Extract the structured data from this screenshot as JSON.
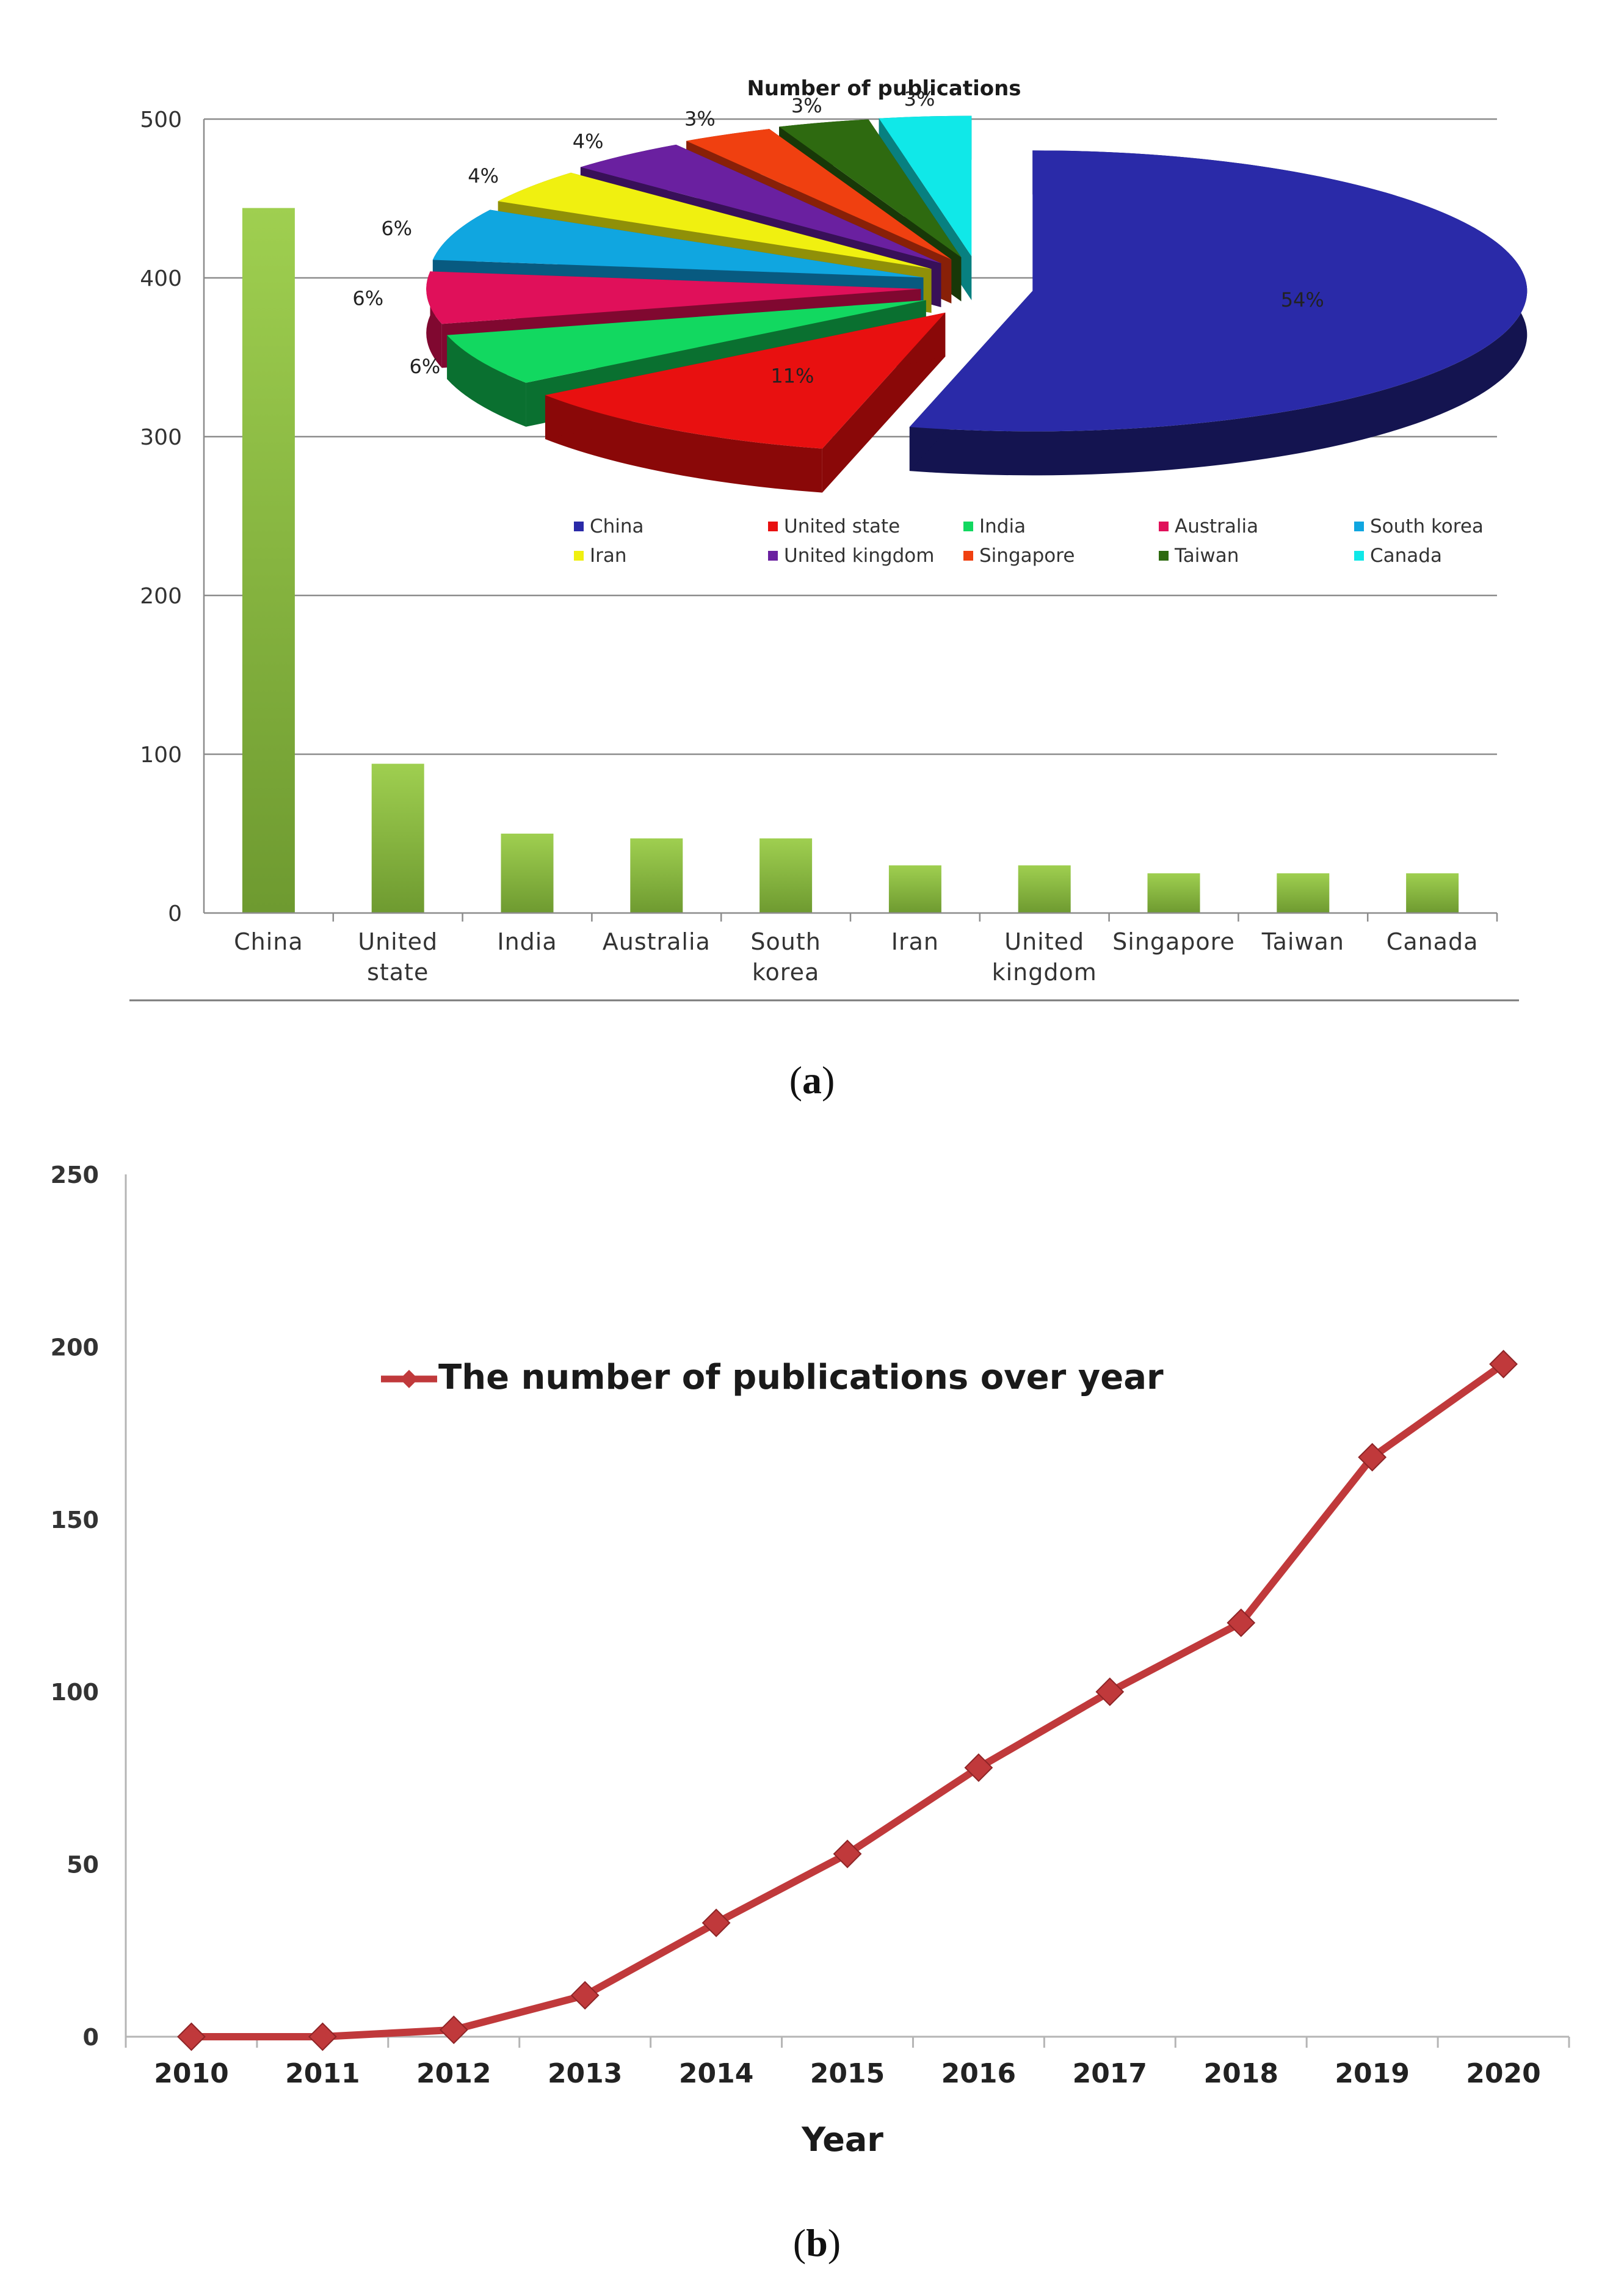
{
  "figure_a": {
    "panel_label": "a",
    "bar": {
      "type": "bar",
      "categories": [
        [
          "China"
        ],
        [
          "United",
          "state"
        ],
        [
          "India"
        ],
        [
          "Australia"
        ],
        [
          "South",
          "korea"
        ],
        [
          "Iran"
        ],
        [
          "United",
          "kingdom"
        ],
        [
          "Singapore"
        ],
        [
          "Taiwan"
        ],
        [
          "Canada"
        ]
      ],
      "values": [
        444,
        94,
        50,
        47,
        47,
        30,
        30,
        25,
        25,
        25
      ],
      "ylim": [
        0,
        500
      ],
      "yticks": [
        0,
        100,
        200,
        300,
        400,
        500
      ],
      "color_top": "#9fcf50",
      "color_bottom": "#6e9a30",
      "grid": true
    },
    "pie": {
      "type": "pie",
      "title": "Number of publications",
      "slices": [
        {
          "name": "China",
          "value": 54,
          "label": "54%",
          "color": "#2a2aa8",
          "dark": "#141450"
        },
        {
          "name": "United state",
          "value": 11,
          "label": "11%",
          "color": "#e81010",
          "dark": "#8a0808"
        },
        {
          "name": "India",
          "value": 6,
          "label": "6%",
          "color": "#12d860",
          "dark": "#0a7030"
        },
        {
          "name": "Australia",
          "value": 6,
          "label": "6%",
          "color": "#e0105a",
          "dark": "#800830"
        },
        {
          "name": "South korea",
          "value": 6,
          "label": "6%",
          "color": "#10a6e0",
          "dark": "#085a80"
        },
        {
          "name": "Iran",
          "value": 4,
          "label": "4%",
          "color": "#f0f010",
          "dark": "#909008"
        },
        {
          "name": "United kingdom",
          "value": 4,
          "label": "4%",
          "color": "#6a20a0",
          "dark": "#381058"
        },
        {
          "name": "Singapore",
          "value": 3,
          "label": "3%",
          "color": "#f04010",
          "dark": "#882008"
        },
        {
          "name": "Taiwan",
          "value": 3,
          "label": "3%",
          "color": "#2e6a10",
          "dark": "#183808"
        },
        {
          "name": "Canada",
          "value": 3,
          "label": "3%",
          "color": "#10e8e8",
          "dark": "#088080"
        }
      ],
      "legend_rows": [
        [
          "China",
          "United state",
          "India",
          "Australia",
          "South korea"
        ],
        [
          "Iran",
          "United kingdom",
          "Singapore",
          "Taiwan",
          "Canada"
        ]
      ],
      "legend_placement": "bottom"
    }
  },
  "figure_b": {
    "panel_label": "b",
    "chart_data": {
      "type": "line",
      "x": [
        2010,
        2011,
        2012,
        2013,
        2014,
        2015,
        2016,
        2017,
        2018,
        2019,
        2020
      ],
      "series": [
        {
          "name": "The number of publications over year",
          "values": [
            0,
            0,
            2,
            12,
            33,
            53,
            78,
            100,
            120,
            168,
            195
          ],
          "color": "#c0393b"
        }
      ],
      "xlabel": "Year",
      "ylim": [
        0,
        250
      ],
      "yticks": [
        0,
        50,
        100,
        150,
        200,
        250
      ],
      "legend_placement": "top-center"
    }
  }
}
